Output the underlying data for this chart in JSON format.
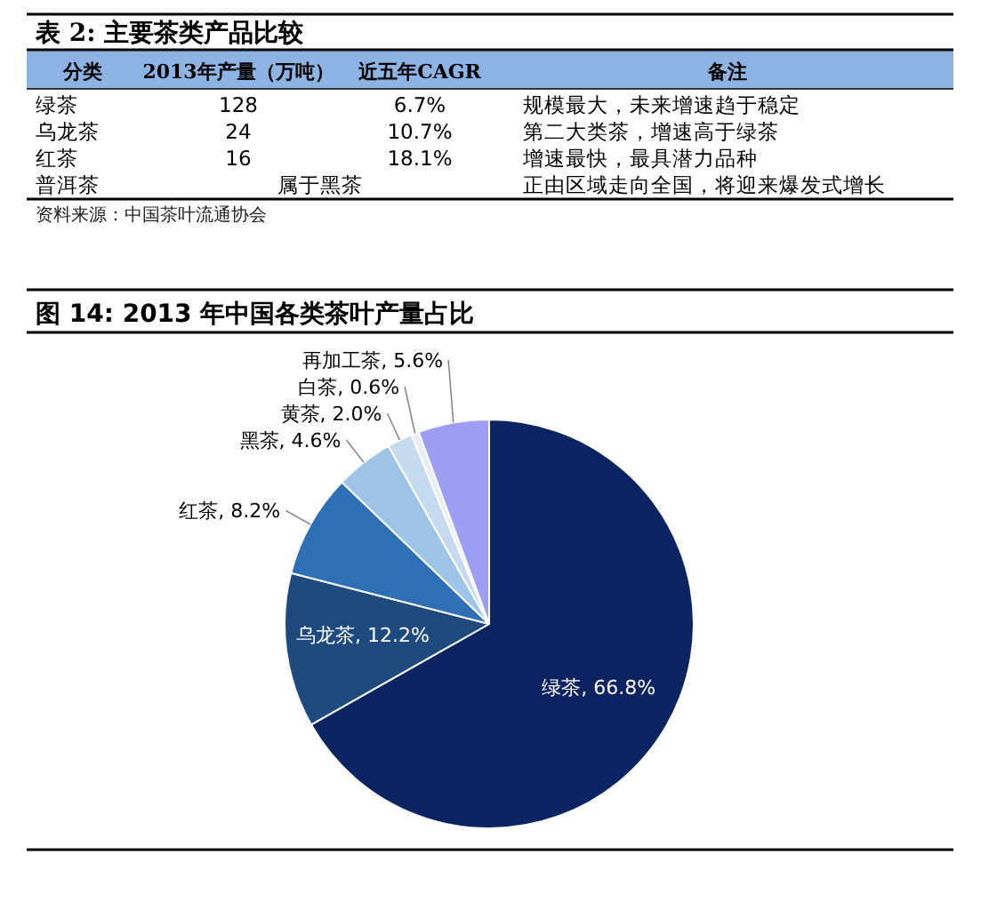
{
  "chart_data": [
    {
      "type": "other",
      "title": "表 2: 主要茶类产品比较",
      "annotations": [
        "分类",
        "2013年产量（万吨）",
        "近五年CAGR",
        "备注",
        "绿茶",
        "128",
        "6.7%",
        "规模最大，未来增速趋于稳定",
        "乌龙茶",
        "24",
        "10.7%",
        "第二大类茶，增速高于绿茶",
        "红茶",
        "16",
        "18.1%",
        "增速最快，最具潜力品种",
        "普洱茶",
        "属于黑茶",
        "正由区域走向全国，将迎来爆发式增长",
        "资料来源：中国茶叶流通协会"
      ]
    },
    {
      "type": "pie",
      "title": "图 14: 2013 年中国各类茶叶产量占比",
      "categories": [
        "绿茶",
        "乌龙茶",
        "红茶",
        "黑茶",
        "黄茶",
        "白茶",
        "再加工茶"
      ],
      "values": [
        66.8,
        12.2,
        8.2,
        4.6,
        2.0,
        0.6,
        5.6
      ],
      "value_labels": [
        "66.8%",
        "12.2%",
        "8.2%",
        "4.6%",
        "2.0%",
        "0.6%",
        "5.6%"
      ],
      "colors": [
        "#0c2461",
        "#1f4a7e",
        "#2f6fb6",
        "#9dc3e6",
        "#c5d9ef",
        "#e6edf7",
        "#9d9df2"
      ]
    }
  ]
}
